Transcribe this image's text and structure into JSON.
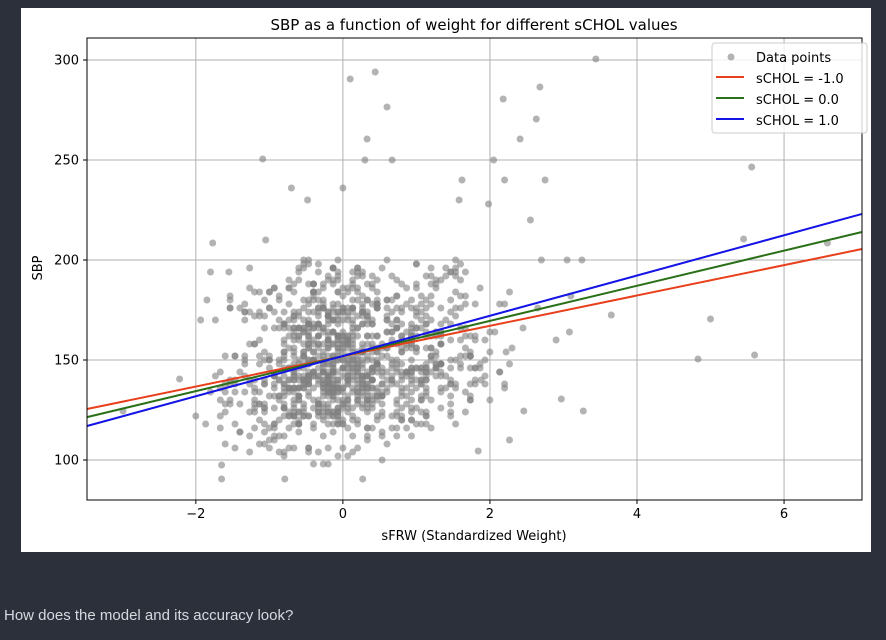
{
  "question": "How does the model and its accuracy look?",
  "chart_data": {
    "type": "scatter",
    "title": "SBP as a function of weight for different sCHOL values",
    "xlabel": "sFRW (Standardized Weight)",
    "ylabel": "SBP",
    "xlim": [
      -3.48,
      7.06
    ],
    "ylim": [
      80,
      311
    ],
    "xticks": [
      -2,
      0,
      2,
      4,
      6
    ],
    "xtick_labels": [
      "−2",
      "0",
      "2",
      "4",
      "6"
    ],
    "yticks": [
      100,
      150,
      200,
      250,
      300
    ],
    "ytick_labels": [
      "100",
      "150",
      "200",
      "250",
      "300"
    ],
    "grid": true,
    "legend_placement": "top-right",
    "scatter": {
      "name": "Data points",
      "color": "#808080",
      "alpha": 0.6,
      "cluster": {
        "count": 1150,
        "x_mean": 0.0,
        "x_sd": 0.75,
        "x_skew_right": 0.35,
        "y_mean": 146,
        "y_sd": 18,
        "y_skew_up": 0.6,
        "y_rounding": 2,
        "seed": 12345
      },
      "outliers": [
        [
          0.44,
          294
        ],
        [
          0.1,
          290.5
        ],
        [
          3.44,
          300.5
        ],
        [
          2.68,
          286.5
        ],
        [
          2.18,
          280.5
        ],
        [
          2.63,
          270.5
        ],
        [
          0.6,
          276.5
        ],
        [
          0.33,
          260.5
        ],
        [
          2.41,
          260.5
        ],
        [
          -1.09,
          250.5
        ],
        [
          5.56,
          246.5
        ],
        [
          5.45,
          210.5
        ],
        [
          6.59,
          208.5
        ],
        [
          5.0,
          170.5
        ],
        [
          5.6,
          152.5
        ],
        [
          4.83,
          150.5
        ],
        [
          3.65,
          172.5
        ],
        [
          3.27,
          124.5
        ],
        [
          2.97,
          130.5
        ],
        [
          2.46,
          124.5
        ],
        [
          -2.99,
          124.5
        ],
        [
          -2.22,
          140.5
        ],
        [
          0.27,
          90.5
        ],
        [
          -1.65,
          97.5
        ],
        [
          -1.65,
          90.5
        ],
        [
          -0.79,
          90.5
        ],
        [
          1.84,
          104.5
        ],
        [
          -1.77,
          208.5
        ],
        [
          2.05,
          250
        ],
        [
          1.62,
          240
        ],
        [
          2.2,
          240
        ],
        [
          2.75,
          240
        ],
        [
          1.58,
          230
        ],
        [
          1.98,
          228
        ],
        [
          2.55,
          220
        ],
        [
          -0.7,
          236
        ],
        [
          -0.48,
          230
        ],
        [
          0.0,
          236
        ],
        [
          0.67,
          250
        ],
        [
          0.3,
          250
        ],
        [
          -1.05,
          210
        ],
        [
          -1.8,
          194
        ],
        [
          -1.55,
          194
        ],
        [
          -1.85,
          180
        ],
        [
          3.05,
          200
        ],
        [
          3.25,
          200
        ],
        [
          2.7,
          200
        ],
        [
          3.1,
          182
        ],
        [
          2.9,
          160
        ],
        [
          3.08,
          164
        ],
        [
          2.65,
          176
        ],
        [
          2.45,
          166
        ],
        [
          2.3,
          156
        ],
        [
          2.22,
          154
        ],
        [
          1.88,
          140
        ]
      ]
    },
    "series": [
      {
        "name": "sCHOL = -1.0",
        "color": "#e8401c",
        "intercept": 151.9,
        "slope": 7.59
      },
      {
        "name": "sCHOL = 0.0",
        "color": "#2a7018",
        "intercept": 152.0,
        "slope": 8.78
      },
      {
        "name": "sCHOL = 1.0",
        "color": "#1414e6",
        "intercept": 152.0,
        "slope": 10.06
      }
    ],
    "legend": [
      "Data points",
      "sCHOL = -1.0",
      "sCHOL = 0.0",
      "sCHOL = 1.0"
    ]
  }
}
